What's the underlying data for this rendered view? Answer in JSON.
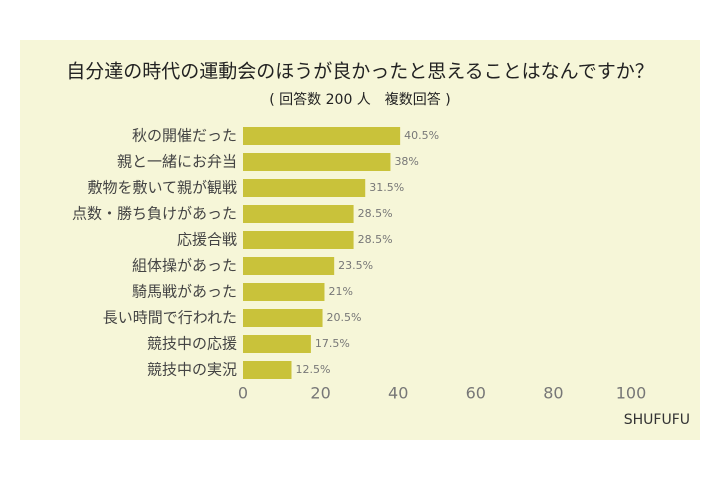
{
  "chart_data": {
    "type": "barh",
    "title": "自分達の時代の運動会のほうが良かったと思えることはなんですか？",
    "subtitle": "( 回答数 200 人　複数回答 )",
    "source": "SHUFUFU",
    "categories": [
      "秋の開催だった",
      "親と一緒にお弁当",
      "敷物を敷いて親が観戦",
      "点数・勝ち負けがあった",
      "応援合戦",
      "組体操があった",
      "騎馬戦があった",
      "長い時間で行われた",
      "競技中の応援",
      "競技中の実況"
    ],
    "values": [
      40.5,
      38,
      31.5,
      28.5,
      28.5,
      23.5,
      21,
      20.5,
      17.5,
      12.5
    ],
    "value_labels": [
      "40.5%",
      "38%",
      "31.5%",
      "28.5%",
      "28.5%",
      "23.5%",
      "21%",
      "20.5%",
      "17.5%",
      "12.5%"
    ],
    "color": "#c9c23a",
    "xlim": [
      0,
      100
    ],
    "xticks": [
      0,
      20,
      40,
      60,
      80,
      100
    ]
  }
}
